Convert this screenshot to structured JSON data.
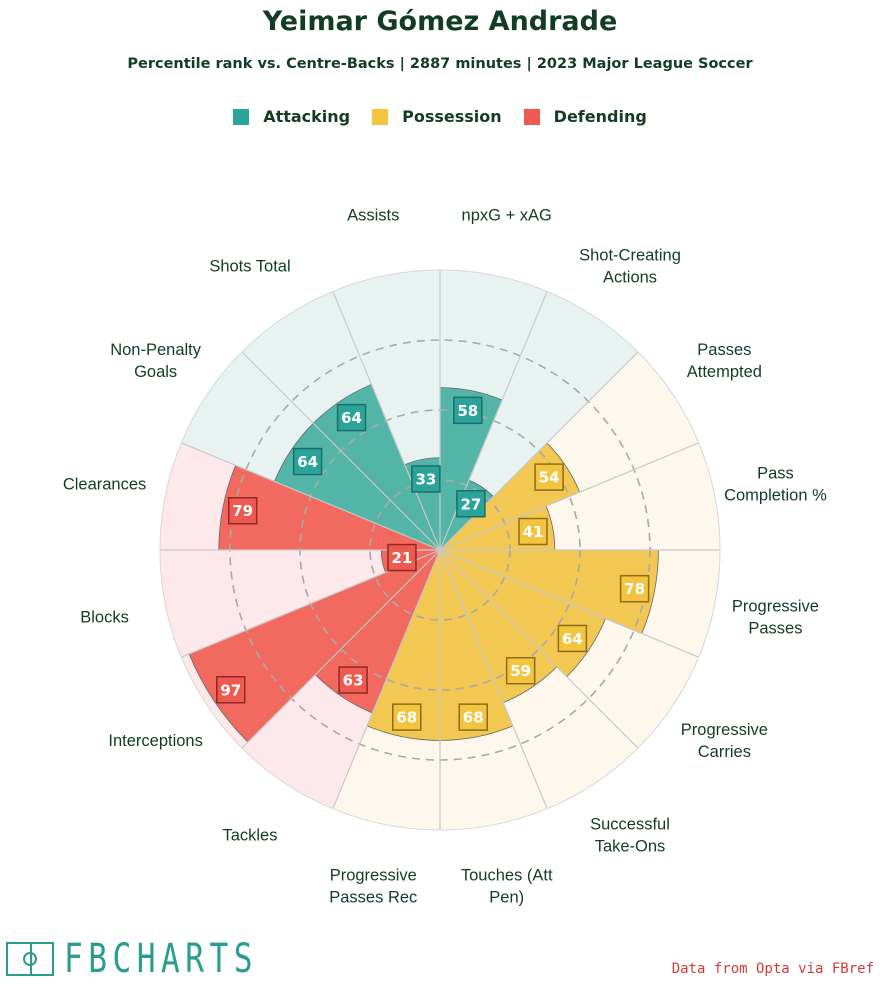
{
  "header": {
    "title": "Yeimar Gómez Andrade",
    "subtitle": "Percentile rank vs. Centre-Backs | 2887 minutes | 2023 Major League Soccer"
  },
  "legend": [
    {
      "label": "Attacking",
      "color": "#2aa39a"
    },
    {
      "label": "Possession",
      "color": "#f2c440"
    },
    {
      "label": "Defending",
      "color": "#ee5a4f"
    }
  ],
  "chart_data": {
    "type": "radar-bar",
    "title": "Yeimar Gómez Andrade",
    "subtitle": "Percentile rank vs. Centre-Backs | 2887 minutes | 2023 Major League Soccer",
    "rlim": [
      0,
      100
    ],
    "rings": [
      25,
      50,
      75
    ],
    "categories": [
      {
        "label": [
          "npxG + xAG"
        ],
        "value": 58,
        "group": "Attacking"
      },
      {
        "label": [
          "Shot-Creating",
          "Actions"
        ],
        "value": 27,
        "group": "Attacking"
      },
      {
        "label": [
          "Passes",
          "Attempted"
        ],
        "value": 54,
        "group": "Possession"
      },
      {
        "label": [
          "Pass",
          "Completion %"
        ],
        "value": 41,
        "group": "Possession"
      },
      {
        "label": [
          "Progressive",
          "Passes"
        ],
        "value": 78,
        "group": "Possession"
      },
      {
        "label": [
          "Progressive",
          "Carries"
        ],
        "value": 64,
        "group": "Possession"
      },
      {
        "label": [
          "Successful",
          "Take-Ons"
        ],
        "value": 59,
        "group": "Possession"
      },
      {
        "label": [
          "Touches (Att",
          "Pen)"
        ],
        "value": 68,
        "group": "Possession"
      },
      {
        "label": [
          "Progressive",
          "Passes Rec"
        ],
        "value": 68,
        "group": "Possession"
      },
      {
        "label": [
          "Tackles"
        ],
        "value": 63,
        "group": "Defending"
      },
      {
        "label": [
          "Interceptions"
        ],
        "value": 97,
        "group": "Defending"
      },
      {
        "label": [
          "Blocks"
        ],
        "value": 21,
        "group": "Defending"
      },
      {
        "label": [
          "Clearances"
        ],
        "value": 79,
        "group": "Defending"
      },
      {
        "label": [
          "Non-Penalty",
          "Goals"
        ],
        "value": 64,
        "group": "Attacking"
      },
      {
        "label": [
          "Shots Total"
        ],
        "value": 64,
        "group": "Attacking"
      },
      {
        "label": [
          "Assists"
        ],
        "value": 33,
        "group": "Attacking"
      }
    ],
    "group_colors": {
      "Attacking": {
        "bar": "#53b5a8",
        "bg": "#e8f3f1",
        "badge": "#2aa39a",
        "badge_border": "#1d6e67"
      },
      "Possession": {
        "bar": "#f2c852",
        "bg": "#fdf7ec",
        "badge": "#f2c440",
        "badge_border": "#8c6c16"
      },
      "Defending": {
        "bar": "#f26a5f",
        "bg": "#fde9eb",
        "badge": "#ee5a4f",
        "badge_border": "#8e2a23"
      }
    }
  },
  "footer": {
    "logo_text": "FBCHARTS",
    "source": "Data from Opta via FBref"
  }
}
